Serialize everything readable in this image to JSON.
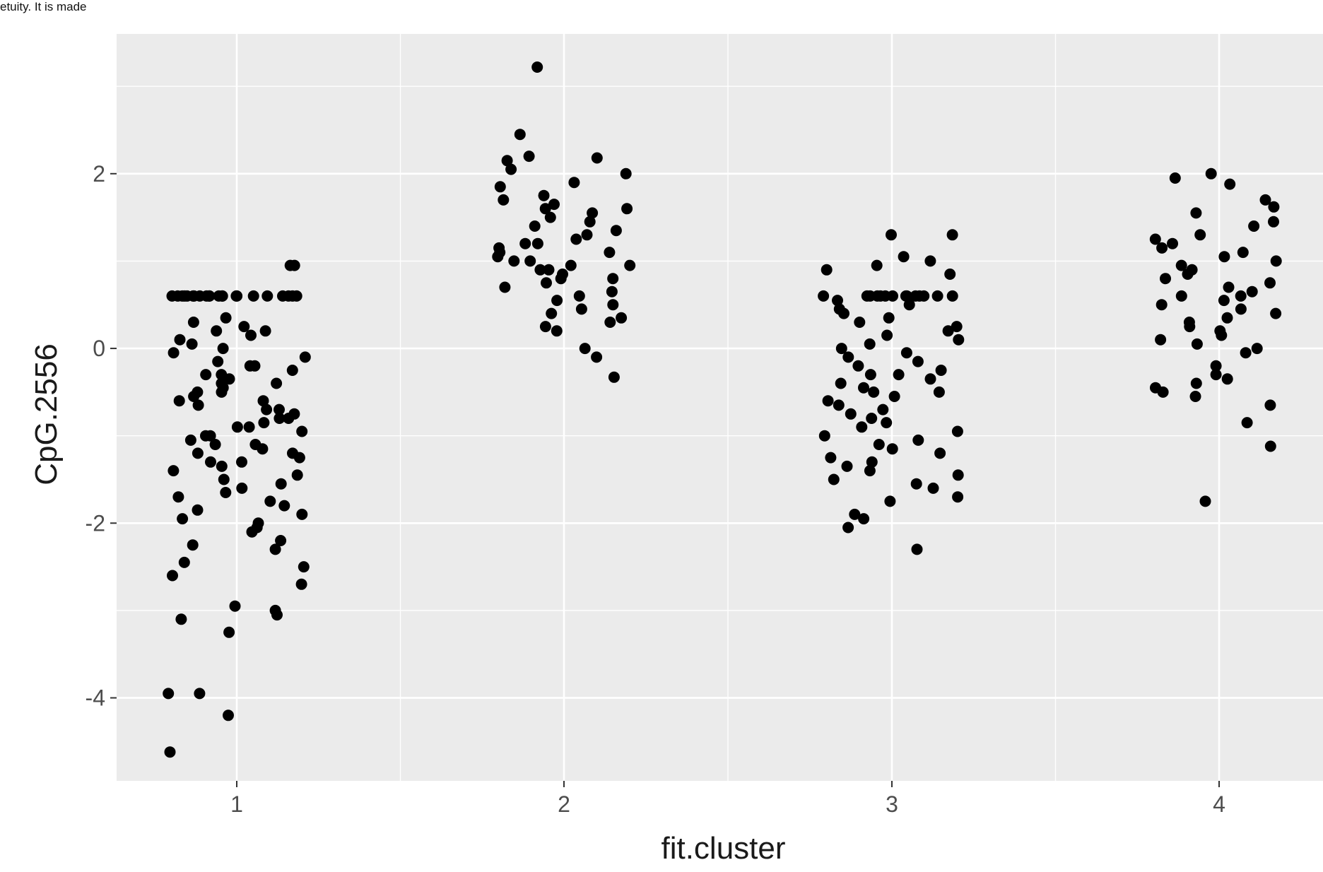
{
  "top_note": "etuity. It is made",
  "chart_data": {
    "type": "scatter",
    "title": "",
    "xlabel": "fit.cluster",
    "ylabel": "CpG.2556",
    "categories": [
      "1",
      "2",
      "3",
      "4"
    ],
    "ylim": [
      -4.95,
      3.6
    ],
    "yticks": [
      -4,
      -2,
      0,
      2
    ],
    "ytick_labels": [
      "-4",
      "-2",
      "0",
      "2"
    ],
    "grid": true,
    "background": "#ebebeb",
    "point_color": "#000000",
    "points": [
      {
        "cluster": 1,
        "values": [
          0.95,
          0.95,
          0.6,
          0.6,
          0.6,
          0.6,
          0.6,
          0.6,
          0.6,
          0.6,
          0.6,
          0.6,
          0.6,
          0.6,
          0.6,
          0.6,
          0.6,
          0.6,
          0.6,
          0.6,
          0.6,
          0.6,
          0.6,
          0.6,
          0.35,
          0.3,
          0.25,
          0.2,
          0.2,
          0.15,
          0.1,
          0.05,
          0.0,
          -0.05,
          -0.1,
          -0.15,
          -0.2,
          -0.2,
          -0.25,
          -0.3,
          -0.3,
          -0.35,
          -0.4,
          -0.4,
          -0.45,
          -0.5,
          -0.5,
          -0.55,
          -0.6,
          -0.6,
          -0.65,
          -0.7,
          -0.7,
          -0.75,
          -0.8,
          -0.8,
          -0.85,
          -0.9,
          -0.9,
          -0.95,
          -1.0,
          -1.0,
          -1.05,
          -1.1,
          -1.1,
          -1.15,
          -1.2,
          -1.2,
          -1.25,
          -1.3,
          -1.3,
          -1.35,
          -1.4,
          -1.45,
          -1.5,
          -1.55,
          -1.6,
          -1.65,
          -1.7,
          -1.75,
          -1.8,
          -1.85,
          -1.9,
          -1.95,
          -2.0,
          -2.05,
          -2.1,
          -2.2,
          -2.25,
          -2.3,
          -2.45,
          -2.5,
          -2.6,
          -2.7,
          -2.95,
          -3.0,
          -3.05,
          -3.1,
          -3.25,
          -3.95,
          -3.95,
          -4.2,
          -4.62
        ]
      },
      {
        "cluster": 2,
        "values": [
          3.22,
          2.45,
          2.2,
          2.18,
          2.15,
          2.05,
          2.0,
          1.9,
          1.85,
          1.75,
          1.7,
          1.65,
          1.6,
          1.6,
          1.55,
          1.5,
          1.45,
          1.4,
          1.35,
          1.3,
          1.25,
          1.2,
          1.2,
          1.15,
          1.1,
          1.1,
          1.05,
          1.0,
          1.0,
          0.95,
          0.95,
          0.9,
          0.9,
          0.85,
          0.8,
          0.8,
          0.75,
          0.7,
          0.65,
          0.6,
          0.55,
          0.5,
          0.45,
          0.4,
          0.35,
          0.3,
          0.25,
          0.2,
          0.0,
          -0.1,
          -0.33
        ]
      },
      {
        "cluster": 3,
        "values": [
          1.3,
          1.3,
          1.05,
          1.0,
          0.95,
          0.9,
          0.85,
          0.6,
          0.6,
          0.6,
          0.6,
          0.6,
          0.6,
          0.6,
          0.6,
          0.6,
          0.6,
          0.6,
          0.6,
          0.6,
          0.6,
          0.55,
          0.5,
          0.45,
          0.4,
          0.35,
          0.3,
          0.25,
          0.2,
          0.15,
          0.1,
          0.05,
          0.0,
          -0.05,
          -0.1,
          -0.15,
          -0.2,
          -0.25,
          -0.3,
          -0.3,
          -0.35,
          -0.4,
          -0.45,
          -0.5,
          -0.5,
          -0.55,
          -0.6,
          -0.65,
          -0.7,
          -0.75,
          -0.8,
          -0.85,
          -0.9,
          -0.95,
          -1.0,
          -1.05,
          -1.1,
          -1.15,
          -1.2,
          -1.25,
          -1.3,
          -1.35,
          -1.4,
          -1.45,
          -1.5,
          -1.55,
          -1.6,
          -1.7,
          -1.75,
          -1.9,
          -1.95,
          -2.05,
          -2.3
        ]
      },
      {
        "cluster": 4,
        "values": [
          2.0,
          1.95,
          1.88,
          1.7,
          1.62,
          1.55,
          1.45,
          1.4,
          1.3,
          1.25,
          1.2,
          1.15,
          1.1,
          1.05,
          1.0,
          0.95,
          0.9,
          0.85,
          0.8,
          0.75,
          0.7,
          0.65,
          0.6,
          0.6,
          0.55,
          0.5,
          0.45,
          0.4,
          0.35,
          0.3,
          0.25,
          0.2,
          0.15,
          0.1,
          0.05,
          0.0,
          -0.05,
          -0.2,
          -0.3,
          -0.35,
          -0.4,
          -0.45,
          -0.5,
          -0.55,
          -0.65,
          -0.85,
          -1.12,
          -1.75
        ]
      }
    ]
  }
}
